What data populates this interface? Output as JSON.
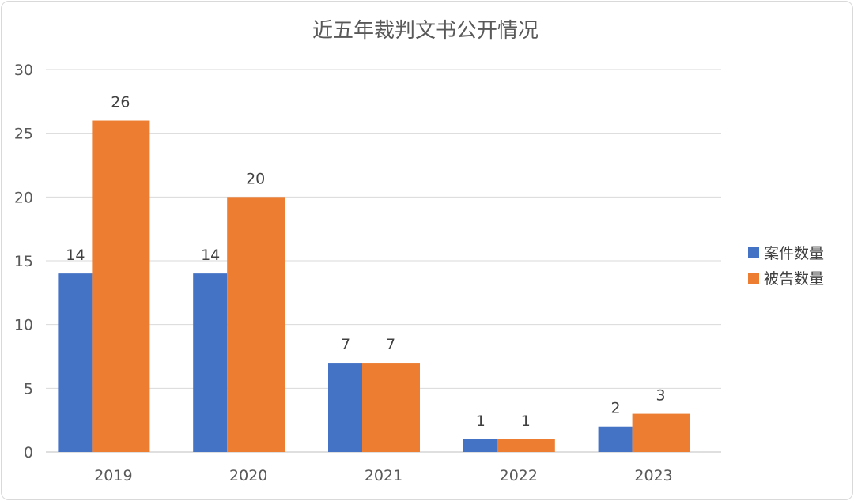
{
  "chart_data": {
    "type": "bar",
    "title": "近五年裁判文书公开情况",
    "xlabel": "",
    "ylabel": "",
    "categories": [
      "2019",
      "2020",
      "2021",
      "2022",
      "2023"
    ],
    "series": [
      {
        "name": "案件数量",
        "color": "#4472C4",
        "values": [
          14,
          14,
          7,
          1,
          2
        ]
      },
      {
        "name": "被告数量",
        "color": "#ED7D31",
        "values": [
          26,
          20,
          7,
          1,
          3
        ]
      }
    ],
    "ylim": [
      0,
      30
    ],
    "yticks": [
      0,
      5,
      10,
      15,
      20,
      25,
      30
    ],
    "grid": true,
    "legend_position": "right",
    "data_labels": true
  }
}
